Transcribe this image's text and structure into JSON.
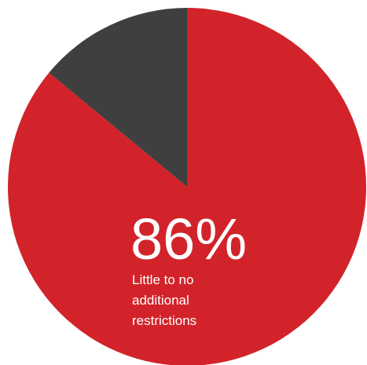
{
  "chart_data": {
    "type": "pie",
    "slices": [
      {
        "label": "Little to no additional restrictions",
        "value": 86,
        "color": "#d2232a",
        "display_value": "86%"
      },
      {
        "label": "",
        "value": 14,
        "color": "#3f3f3f"
      }
    ],
    "label_lines": [
      "Little to no",
      "additional",
      "restrictions"
    ]
  }
}
